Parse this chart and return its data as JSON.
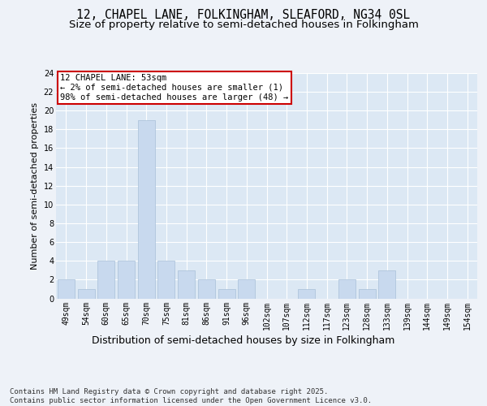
{
  "title": "12, CHAPEL LANE, FOLKINGHAM, SLEAFORD, NG34 0SL",
  "subtitle": "Size of property relative to semi-detached houses in Folkingham",
  "xlabel": "Distribution of semi-detached houses by size in Folkingham",
  "ylabel": "Number of semi-detached properties",
  "categories": [
    "49sqm",
    "54sqm",
    "60sqm",
    "65sqm",
    "70sqm",
    "75sqm",
    "81sqm",
    "86sqm",
    "91sqm",
    "96sqm",
    "102sqm",
    "107sqm",
    "112sqm",
    "117sqm",
    "123sqm",
    "128sqm",
    "133sqm",
    "139sqm",
    "144sqm",
    "149sqm",
    "154sqm"
  ],
  "values": [
    2,
    1,
    4,
    4,
    19,
    4,
    3,
    2,
    1,
    2,
    0,
    0,
    1,
    0,
    2,
    1,
    3,
    0,
    0,
    0,
    0
  ],
  "bar_color": "#c8d9ee",
  "bar_edgecolor": "#a8bfd8",
  "ylim": [
    0,
    24
  ],
  "yticks": [
    0,
    2,
    4,
    6,
    8,
    10,
    12,
    14,
    16,
    18,
    20,
    22,
    24
  ],
  "annotation_title": "12 CHAPEL LANE: 53sqm",
  "annotation_line1": "← 2% of semi-detached houses are smaller (1)",
  "annotation_line2": "98% of semi-detached houses are larger (48) →",
  "annotation_box_color": "#ffffff",
  "annotation_border_color": "#cc0000",
  "footer_line1": "Contains HM Land Registry data © Crown copyright and database right 2025.",
  "footer_line2": "Contains public sector information licensed under the Open Government Licence v3.0.",
  "background_color": "#eef2f8",
  "plot_background": "#dce8f4",
  "grid_color": "#ffffff",
  "title_fontsize": 10.5,
  "subtitle_fontsize": 9.5,
  "ylabel_fontsize": 8,
  "xlabel_fontsize": 9,
  "tick_fontsize": 7,
  "annotation_fontsize": 7.5,
  "footer_fontsize": 6.5
}
